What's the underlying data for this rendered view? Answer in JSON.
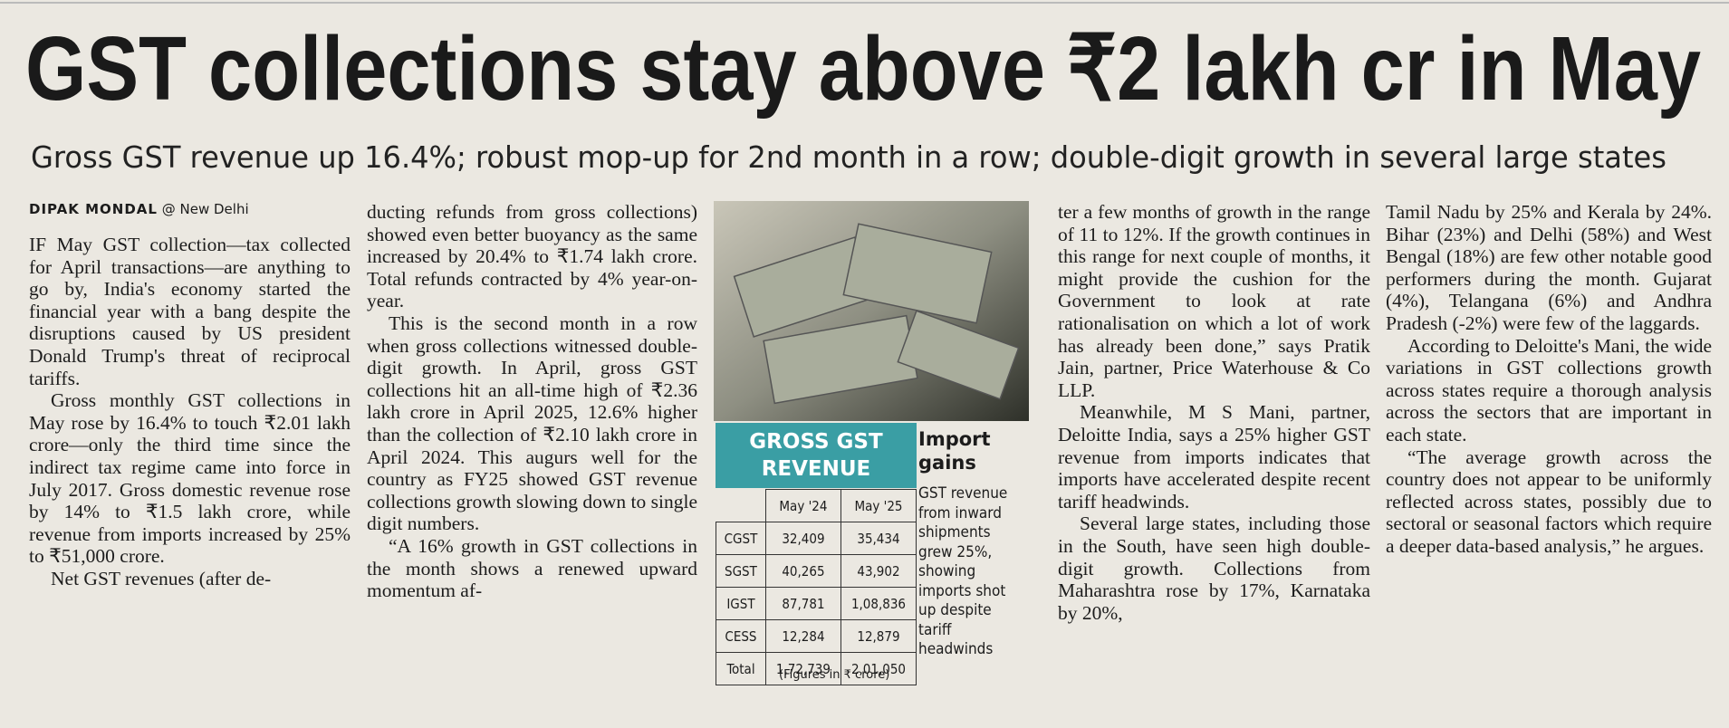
{
  "headline": "GST collections stay above ₹2 lakh cr in May",
  "subheadline": "Gross GST revenue up 16.4%; robust mop-up for 2nd month in a row; double-digit growth in several large states",
  "byline": {
    "author": "DIPAK MONDAL",
    "location": "@ New Delhi"
  },
  "columns": [
    {
      "paragraphs": [
        "IF May GST collection—tax collected for April transactions—are anything to go by, India's economy started the financial year with a bang despite the disruptions caused by US president Donald Trump's threat of reciprocal tariffs.",
        "Gross monthly GST collections in May rose by 16.4% to touch ₹2.01 lakh crore—only the third time since the indirect tax regime came into force in July 2017. Gross domestic revenue rose by 14% to ₹1.5 lakh crore, while revenue from imports increased by 25% to ₹51,000 crore.",
        "Net GST revenues (after de-"
      ]
    },
    {
      "paragraphs": [
        "ducting refunds from gross collections) showed even better buoyancy as the same increased by 20.4% to ₹1.74 lakh crore. Total refunds contracted by 4% year-on-year.",
        "This is the second month in a row when gross collections witnessed double-digit growth. In April, gross GST collections hit an all-time high of ₹2.36 lakh crore in April 2025, 12.6% higher than the collection of ₹2.10 lakh crore in April 2024. This augurs well for the country as FY25 showed GST revenue collections growth slowing down to single digit numbers.",
        "“A 16% growth in GST collections in the month shows a renewed upward momentum af-"
      ]
    },
    {
      "paragraphs": [
        "ter a few months of growth in the range of 11 to 12%. If the growth continues in this range for next couple of months, it might provide the cushion for the Government to look at rate rationalisation on which a lot of work has already been done,” says Pratik Jain, partner, Price Waterhouse & Co LLP.",
        "Meanwhile, M S Mani, partner, Deloitte India, says a 25% higher GST revenue from imports indicates that imports have accelerated despite recent tariff headwinds.",
        "Several large states, including those in the South, have seen high double-digit growth. Collections from Maharashtra rose by 17%, Karnataka by 20%,"
      ]
    },
    {
      "paragraphs": [
        "Tamil Nadu by 25% and Kerala by 24%. Bihar (23%) and Delhi (58%) and West Bengal (18%) are few other notable good performers during the month. Gujarat (4%), Telangana (6%) and Andhra Pradesh (-2%) were few of the laggards.",
        "According to Deloitte's Mani, the wide variations in GST collections growth across states require a thorough analysis across the sectors that are important in each state.",
        "“The average growth across the country does not appear to be uniformly reflected across states, possibly due to sectoral or seasonal factors which require a deeper data-based analysis,” he argues."
      ]
    }
  ],
  "table": {
    "title": "GROSS GST REVENUE",
    "header": [
      "May '24",
      "May '25"
    ],
    "rows": [
      [
        "CGST",
        "32,409",
        "35,434"
      ],
      [
        "SGST",
        "40,265",
        "43,902"
      ],
      [
        "IGST",
        "87,781",
        "1,08,836"
      ],
      [
        "CESS",
        "12,284",
        "12,879"
      ],
      [
        "Total",
        "1,72,739",
        "2,01,050"
      ]
    ],
    "note": "(Figures in ₹ crore)"
  },
  "sidebar": {
    "title": "Import gains",
    "text": "GST revenue from inward shipments grew 25%, showing imports shot up despite tariff headwinds"
  }
}
